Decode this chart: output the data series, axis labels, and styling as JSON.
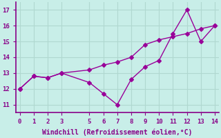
{
  "line1_x": [
    0,
    1,
    2,
    3,
    5,
    6,
    7,
    8,
    9,
    10,
    11,
    12,
    13,
    14
  ],
  "line1_y": [
    12.0,
    12.8,
    12.7,
    13.0,
    12.4,
    11.7,
    11.0,
    12.6,
    13.4,
    13.8,
    15.5,
    17.0,
    15.0,
    16.0
  ],
  "line2_x": [
    0,
    1,
    2,
    3,
    5,
    6,
    7,
    8,
    9,
    10,
    11,
    12,
    13,
    14
  ],
  "line2_y": [
    12.0,
    12.8,
    12.7,
    13.0,
    13.2,
    13.5,
    13.7,
    14.0,
    14.8,
    15.1,
    15.3,
    15.5,
    15.8,
    16.0
  ],
  "line_color": "#990099",
  "bg_color": "#c8eee8",
  "grid_color": "#b0d8d0",
  "spine_color": "#880088",
  "xlabel": "Windchill (Refroidissement éolien,°C)",
  "xlabel_color": "#880088",
  "tick_color": "#880088",
  "ylim": [
    10.5,
    17.5
  ],
  "xlim": [
    -0.3,
    14.3
  ],
  "yticks": [
    11,
    12,
    13,
    14,
    15,
    16,
    17
  ],
  "xticks": [
    0,
    1,
    2,
    3,
    5,
    6,
    7,
    8,
    9,
    10,
    11,
    12,
    13,
    14
  ],
  "xtick_labels": [
    "0",
    "1",
    "2",
    "3",
    "5",
    "6",
    "7",
    "8",
    "9",
    "10",
    "11",
    "12",
    "13",
    "14"
  ],
  "marker": "D",
  "markersize": 3,
  "linewidth": 1.0
}
